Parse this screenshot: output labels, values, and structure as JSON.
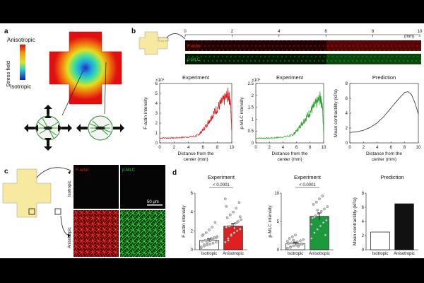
{
  "panels": {
    "a": {
      "letter": "a",
      "colorbar_title": "Stress field",
      "colorbar_top": "Anisotropic",
      "colorbar_bottom": "Isotropic"
    },
    "b": {
      "letter": "b",
      "scale_ticks": [
        "0",
        "2",
        "4",
        "6",
        "8",
        "10"
      ],
      "scale_unit": "(mm)",
      "strip1_label": "F-actin",
      "strip2_label": "p-MLC",
      "colors": {
        "factin": "#e01010",
        "pmlc": "#20a020",
        "pred": "#111111"
      }
    },
    "c": {
      "letter": "c",
      "col1": "F-actin",
      "col2": "p-MLC",
      "row1": "Isotropic",
      "row2": "Anisotropic",
      "scalebar": "50 μm"
    },
    "d": {
      "letter": "d",
      "colors": {
        "iso": "#ffffff",
        "factin": "#e02020",
        "pmlc": "#1a9a3a",
        "pred_aniso": "#111111"
      }
    }
  },
  "chart_data": [
    {
      "type": "line",
      "id": "b-factin",
      "title": "Experiment",
      "xlabel": "Distance from the center (mm)",
      "ylabel": "F-actin intensity",
      "y_multiplier": "×10⁴",
      "xlim": [
        0,
        10
      ],
      "ylim": [
        0,
        6
      ],
      "xticks": [
        0,
        2,
        4,
        6,
        8,
        10
      ],
      "yticks": [
        0,
        1,
        2,
        3,
        4,
        5,
        6
      ],
      "x": [
        0,
        1,
        2,
        3,
        4,
        5,
        5.5,
        6,
        6.5,
        7,
        7.5,
        8,
        8.5,
        9,
        9.5,
        9.8,
        10
      ],
      "y": [
        0.5,
        0.5,
        0.5,
        0.55,
        0.6,
        0.7,
        0.9,
        1.3,
        1.8,
        2.4,
        3.0,
        3.5,
        4.0,
        4.4,
        4.9,
        4.2,
        1.2
      ]
    },
    {
      "type": "line",
      "id": "b-pmlc",
      "title": "Experiment",
      "xlabel": "Distance from the center (mm)",
      "ylabel": "p-MLC intensity",
      "y_multiplier": "×10⁴",
      "xlim": [
        0,
        10
      ],
      "ylim": [
        0,
        2.5
      ],
      "xticks": [
        0,
        2,
        4,
        6,
        8,
        10
      ],
      "yticks": [
        0,
        0.5,
        1,
        1.5,
        2,
        2.5
      ],
      "x": [
        0,
        1,
        2,
        3,
        4,
        5,
        5.5,
        6,
        6.5,
        7,
        7.5,
        8,
        8.5,
        9,
        9.5,
        9.8,
        10
      ],
      "y": [
        0.2,
        0.2,
        0.2,
        0.22,
        0.25,
        0.3,
        0.35,
        0.5,
        0.7,
        0.9,
        1.1,
        1.3,
        1.5,
        1.7,
        1.9,
        1.6,
        0.4
      ]
    },
    {
      "type": "line",
      "id": "b-pred",
      "title": "Prediction",
      "xlabel": "Distance from the center (mm)",
      "ylabel": "Mean contractility (kPa)",
      "xlim": [
        0,
        10
      ],
      "ylim": [
        0,
        8
      ],
      "xticks": [
        0,
        2,
        4,
        6,
        8,
        10
      ],
      "yticks": [
        0,
        2,
        4,
        6,
        8
      ],
      "x": [
        0,
        1,
        2,
        3,
        4,
        5,
        6,
        7,
        7.5,
        8,
        8.5,
        9,
        9.5,
        10
      ],
      "y": [
        1.4,
        1.5,
        1.7,
        2.1,
        2.7,
        3.6,
        4.7,
        5.8,
        6.3,
        6.8,
        6.9,
        6.5,
        5.4,
        3.9
      ]
    },
    {
      "type": "bar",
      "id": "d-factin",
      "title": "Experiment",
      "categories": [
        "Isotropic",
        "Anisotropic"
      ],
      "values": [
        1.0,
        2.5
      ],
      "errors": [
        0.15,
        0.3
      ],
      "ylabel": "F-actin intensity",
      "ylim": [
        0,
        6
      ],
      "yticks": [
        0,
        2,
        4,
        6
      ],
      "pvalue": "< 0.0001",
      "points": [
        [
          0.2,
          0.4,
          0.5,
          0.6,
          0.7,
          0.8,
          0.9,
          1.0,
          1.1,
          1.2,
          1.3,
          1.4,
          1.6,
          1.8,
          2.1,
          2.4,
          2.9,
          0.3,
          0.55,
          0.75,
          0.95,
          1.05,
          1.25,
          1.5
        ],
        [
          0.8,
          1.2,
          1.5,
          1.8,
          2.0,
          2.2,
          2.4,
          2.5,
          2.6,
          2.8,
          3.0,
          3.2,
          3.4,
          3.7,
          4.0,
          4.4,
          5.0,
          5.4,
          1.0,
          1.6,
          2.3,
          2.9,
          3.5,
          4.6
        ]
      ]
    },
    {
      "type": "bar",
      "id": "d-pmlc",
      "title": "Experiment",
      "categories": [
        "Isotropic",
        "Anisotropic"
      ],
      "values": [
        1.1,
        5.9
      ],
      "errors": [
        0.2,
        0.6
      ],
      "ylabel": "p-MLC intensity",
      "ylim": [
        0,
        10
      ],
      "yticks": [
        0,
        5,
        10
      ],
      "pvalue": "< 0.0001",
      "points": [
        [
          0.3,
          0.5,
          0.7,
          0.8,
          0.9,
          1.0,
          1.1,
          1.2,
          1.3,
          1.4,
          1.6,
          1.8,
          2.0,
          2.3,
          2.6,
          0.6,
          1.05,
          1.5,
          0.4,
          1.7
        ],
        [
          2.0,
          3.0,
          3.6,
          4.2,
          4.8,
          5.2,
          5.6,
          6.0,
          6.4,
          6.8,
          7.2,
          7.6,
          8.0,
          8.4,
          9.0,
          9.5,
          2.6,
          4.5,
          5.8,
          7.0
        ]
      ]
    },
    {
      "type": "bar",
      "id": "d-pred",
      "title": "Prediction",
      "categories": [
        "Isotropic",
        "Anisotropic"
      ],
      "values": [
        2.5,
        6.5
      ],
      "ylabel": "Mean contractility (kPa)",
      "ylim": [
        0,
        8
      ],
      "yticks": [
        0,
        2,
        4,
        6,
        8
      ]
    }
  ]
}
